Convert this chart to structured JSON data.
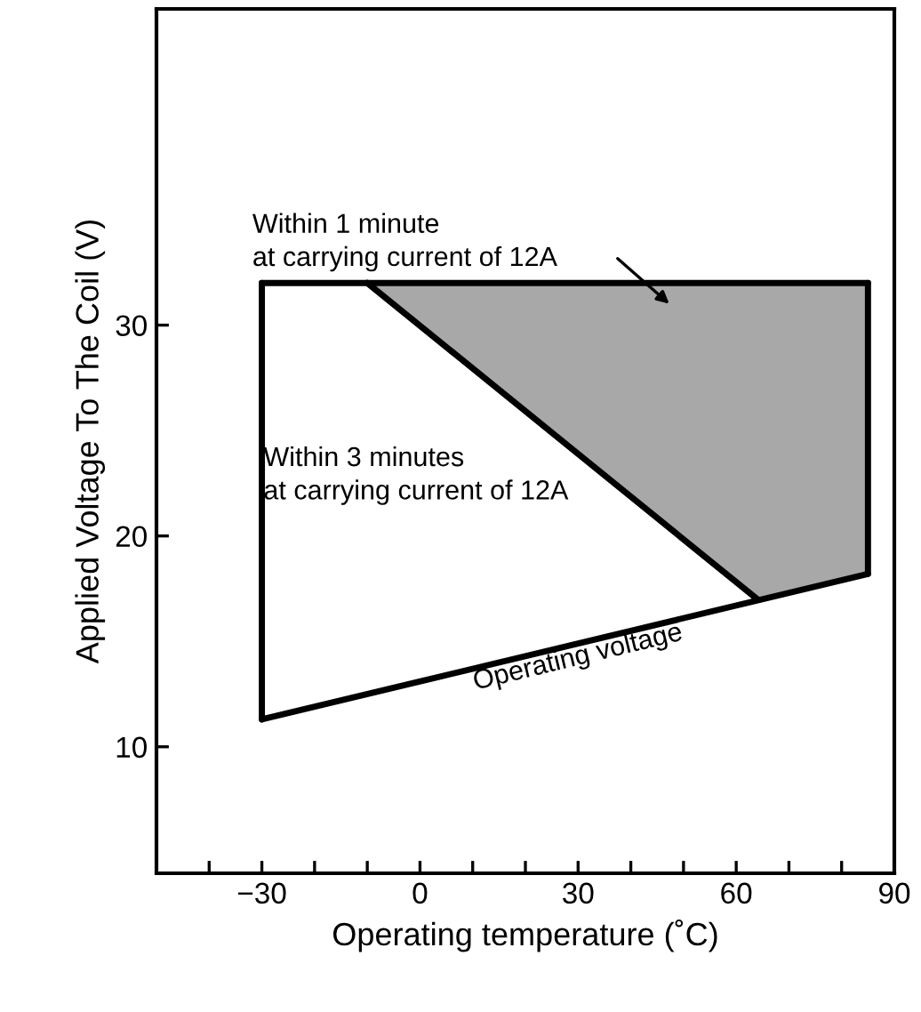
{
  "chart_data": {
    "type": "line",
    "xlabel": "Operating temperature (˚C)",
    "ylabel": "Applied Voltage To The Coil (V)",
    "xlim": [
      -50,
      90
    ],
    "ylim": [
      4,
      45
    ],
    "xticks": [
      {
        "value": -40,
        "label": null
      },
      -30,
      {
        "value": -20,
        "label": null
      },
      {
        "value": -10,
        "label": null
      },
      0,
      {
        "value": 10,
        "label": null
      },
      {
        "value": 20,
        "label": null
      },
      30,
      {
        "value": 40,
        "label": null
      },
      {
        "value": 50,
        "label": null
      },
      60,
      {
        "value": 70,
        "label": null
      },
      {
        "value": 80,
        "label": null
      },
      90
    ],
    "yticks": [
      10,
      20,
      30
    ],
    "series": [
      {
        "color": "#000000",
        "x": [
          -30,
          -10,
          64,
          85
        ],
        "values": [
          32,
          32,
          32,
          32
        ],
        "lower": [
          null,
          32,
          17,
          18.2
        ],
        "upper": [
          null,
          32,
          32,
          32
        ]
      },
      {
        "color": "#000000",
        "x": [
          -30,
          85
        ],
        "values": [
          11.3,
          18.2
        ]
      },
      {
        "color": "#000000",
        "x": [
          -10,
          64
        ],
        "values": [
          32,
          17
        ]
      },
      {
        "color": "#000000",
        "x": [
          -30,
          -30
        ],
        "values": [
          11.3,
          32
        ]
      },
      {
        "color": "#000000",
        "x": [
          85,
          85
        ],
        "values": [
          18.2,
          32
        ]
      }
    ],
    "annotations": [
      "Within 1 minute\nat carrying current of 12A",
      "Within 3 minutes\nat carrying current of 12A",
      "Operating voltage"
    ],
    "grid": false,
    "legend": false,
    "marker": "none",
    "line_style": "solid"
  }
}
